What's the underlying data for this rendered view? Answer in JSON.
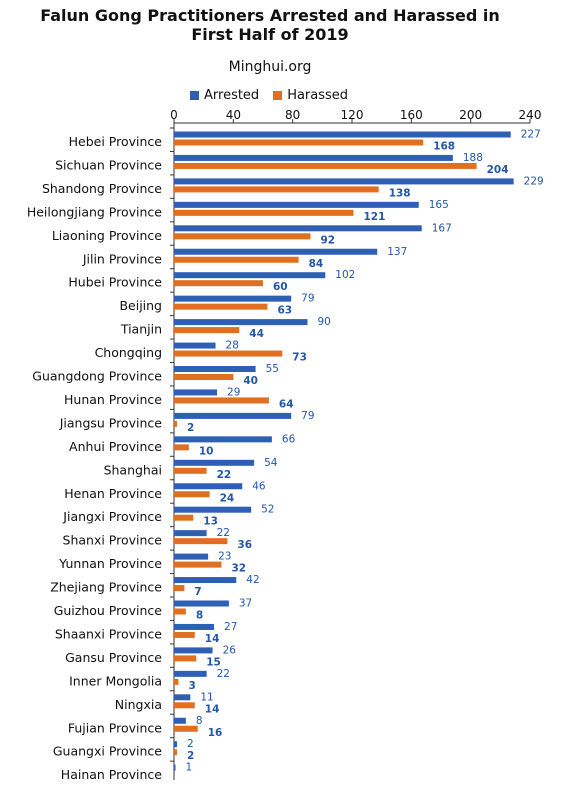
{
  "header": {
    "title_line1": "Falun Gong Practitioners Arrested and Harassed in",
    "title_line2": "First Half of 2019",
    "source": "Minghui.org"
  },
  "colors": {
    "arrested": "#2d5fb5",
    "harassed": "#e06f1f",
    "label": "#2457a8"
  },
  "chart_data": {
    "type": "bar",
    "orientation": "horizontal",
    "title": "Falun Gong Practitioners Arrested and Harassed in First Half of 2019",
    "subtitle": "Minghui.org",
    "xlabel": "",
    "ylabel": "",
    "xlim": [
      0,
      240
    ],
    "xticks": [
      0,
      40,
      80,
      120,
      160,
      200,
      240
    ],
    "legend_position": "top",
    "grid": false,
    "categories": [
      "Hebei Province",
      "Sichuan Province",
      "Shandong Province",
      "Heilongjiang Province",
      "Liaoning Province",
      "Jilin Province",
      "Hubei Province",
      "Beijing",
      "Tianjin",
      "Chongqing",
      "Guangdong Province",
      "Hunan Province",
      "Jiangsu Province",
      "Anhui Province",
      "Shanghai",
      "Henan Province",
      "Jiangxi Province",
      "Shanxi Province",
      "Yunnan Province",
      "Zhejiang Province",
      "Guizhou Province",
      "Shaanxi Province",
      "Gansu Province",
      "Inner Mongolia",
      "Ningxia",
      "Fujian Province",
      "Guangxi Province",
      "Hainan Province"
    ],
    "series": [
      {
        "name": "Arrested",
        "values": [
          227,
          188,
          229,
          165,
          167,
          137,
          102,
          79,
          90,
          28,
          55,
          29,
          79,
          66,
          54,
          46,
          52,
          22,
          23,
          42,
          37,
          27,
          26,
          22,
          11,
          8,
          2,
          1
        ]
      },
      {
        "name": "Harassed",
        "values": [
          168,
          204,
          138,
          121,
          92,
          84,
          60,
          63,
          44,
          73,
          40,
          64,
          2,
          10,
          22,
          24,
          13,
          36,
          32,
          7,
          8,
          14,
          15,
          3,
          14,
          16,
          2,
          null
        ]
      }
    ]
  }
}
